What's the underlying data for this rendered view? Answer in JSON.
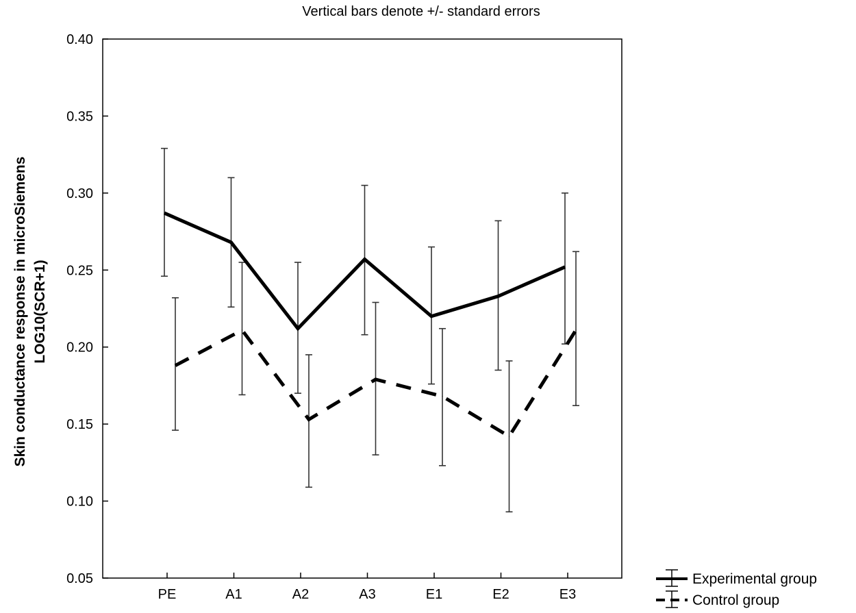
{
  "chart_data": {
    "type": "line",
    "title": "Vertical bars denote +/- standard errors",
    "ylabel_lines": [
      "Skin conductance response in microSiemens",
      "LOG10(SCR+1)"
    ],
    "xlabel": "",
    "categories": [
      "PE",
      "A1",
      "A2",
      "A3",
      "E1",
      "E2",
      "E3"
    ],
    "ylim": [
      0.05,
      0.4
    ],
    "yticks": [
      "0.05",
      "0.10",
      "0.15",
      "0.20",
      "0.25",
      "0.30",
      "0.35",
      "0.40"
    ],
    "grid": false,
    "legend_position": "bottom-right",
    "series": [
      {
        "name": "Experimental group",
        "style": "solid",
        "color": "#000000",
        "values": [
          0.287,
          0.268,
          0.212,
          0.257,
          0.22,
          0.233,
          0.252
        ],
        "err_low": [
          0.246,
          0.226,
          0.17,
          0.208,
          0.176,
          0.185,
          0.202
        ],
        "err_high": [
          0.329,
          0.31,
          0.255,
          0.305,
          0.265,
          0.282,
          0.3
        ]
      },
      {
        "name": "Control group",
        "style": "dashed",
        "color": "#000000",
        "values": [
          0.188,
          0.211,
          0.153,
          0.179,
          0.168,
          0.142,
          0.211
        ],
        "err_low": [
          0.146,
          0.169,
          0.109,
          0.13,
          0.123,
          0.093,
          0.162
        ],
        "err_high": [
          0.232,
          0.255,
          0.195,
          0.229,
          0.212,
          0.191,
          0.262
        ]
      }
    ]
  }
}
